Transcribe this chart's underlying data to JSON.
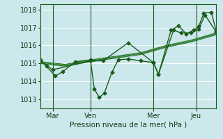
{
  "xlabel": "Pression niveau de la mer( hPa )",
  "background_color": "#cce8ec",
  "grid_color": "#ffffff",
  "line_color_dark": "#1a5c1a",
  "line_color_med": "#2d7a2d",
  "ylim": [
    1012.5,
    1018.3
  ],
  "yticks": [
    1013,
    1014,
    1015,
    1016,
    1017,
    1018
  ],
  "xlim": [
    0,
    7.0
  ],
  "xtick_positions": [
    0.5,
    2.0,
    4.5,
    6.2
  ],
  "xtick_labels": [
    "Mar",
    "Ven",
    "Mer",
    "Jeu"
  ],
  "vlines": [
    0.5,
    2.0,
    4.5,
    6.2
  ],
  "series_smooth": [
    {
      "x": [
        0.0,
        1.0,
        2.0,
        3.0,
        4.0,
        5.0,
        6.0,
        7.0
      ],
      "y": [
        1015.0,
        1014.85,
        1015.1,
        1015.3,
        1015.5,
        1015.9,
        1016.2,
        1016.6
      ],
      "lw": 0.9
    },
    {
      "x": [
        0.0,
        1.0,
        2.0,
        3.0,
        4.0,
        5.0,
        6.0,
        7.0
      ],
      "y": [
        1015.05,
        1014.9,
        1015.15,
        1015.35,
        1015.55,
        1015.95,
        1016.25,
        1016.65
      ],
      "lw": 0.9
    },
    {
      "x": [
        0.0,
        1.0,
        2.0,
        3.0,
        4.0,
        5.0,
        6.0,
        7.0
      ],
      "y": [
        1015.1,
        1014.95,
        1015.2,
        1015.4,
        1015.6,
        1016.0,
        1016.3,
        1016.7
      ],
      "lw": 0.9
    }
  ],
  "series_jagged": [
    {
      "x": [
        0.0,
        0.25,
        0.6,
        0.9,
        1.4,
        2.0,
        2.15,
        2.35,
        2.55,
        2.85,
        3.1,
        3.5,
        4.0,
        4.5,
        4.7,
        5.2,
        5.5,
        5.8,
        6.1,
        6.3,
        6.5,
        6.8,
        7.0
      ],
      "y": [
        1015.2,
        1014.85,
        1014.3,
        1014.55,
        1015.1,
        1015.2,
        1013.6,
        1013.1,
        1013.35,
        1014.5,
        1015.2,
        1015.25,
        1015.15,
        1015.05,
        1014.4,
        1016.85,
        1017.1,
        1016.65,
        1016.85,
        1017.05,
        1017.8,
        1017.85,
        1016.8
      ],
      "lw": 1.0,
      "marker": "D",
      "ms": 2.5
    },
    {
      "x": [
        0.0,
        0.5,
        2.0,
        2.5,
        3.5,
        4.5,
        4.7,
        5.3,
        5.6,
        6.0,
        6.3,
        6.55,
        7.0
      ],
      "y": [
        1015.15,
        1014.65,
        1015.15,
        1015.15,
        1016.15,
        1015.05,
        1014.4,
        1016.85,
        1016.7,
        1016.7,
        1016.9,
        1017.7,
        1016.75
      ],
      "lw": 1.0,
      "marker": "D",
      "ms": 2.5
    }
  ]
}
